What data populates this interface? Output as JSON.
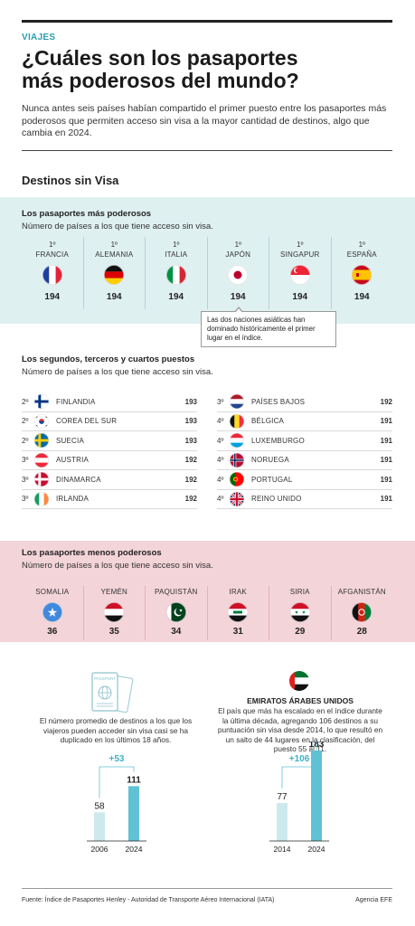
{
  "kicker": "VIAJES",
  "title_line1": "¿Cuáles son los pasaportes",
  "title_line2": "más poderosos del mundo?",
  "lead": "Nunca antes seis países habían compartido el primer puesto entre los pasaportes más poderosos que permiten acceso sin visa a la mayor cantidad de destinos, algo que cambia en 2024.",
  "section_title": "Destinos sin Visa",
  "top": {
    "title": "Los pasaportes más poderosos",
    "subtitle": "Número de países a los que tiene acceso sin visa.",
    "items": [
      {
        "rank": "1º",
        "country": "FRANCIA",
        "score": "194",
        "flag": "france-flag"
      },
      {
        "rank": "1º",
        "country": "ALEMANIA",
        "score": "194",
        "flag": "germany-flag"
      },
      {
        "rank": "1º",
        "country": "ITALIA",
        "score": "194",
        "flag": "italy-flag"
      },
      {
        "rank": "1º",
        "country": "JAPÓN",
        "score": "194",
        "flag": "japan-flag"
      },
      {
        "rank": "1º",
        "country": "SINGAPUR",
        "score": "194",
        "flag": "singapore-flag"
      },
      {
        "rank": "1º",
        "country": "ESPAÑA",
        "score": "194",
        "flag": "spain-flag"
      }
    ],
    "tooltip": "Las dos naciones asiáticas han dominado históricamente el primer lugar en el índice."
  },
  "middle": {
    "title": "Los segundos, terceros y cuartos puestos",
    "subtitle": "Número de países a los que tiene acceso sin visa.",
    "left": [
      {
        "rank": "2º",
        "country": "FINLANDIA",
        "score": "193",
        "flag": "finland-flag"
      },
      {
        "rank": "2º",
        "country": "COREA DEL SUR",
        "score": "193",
        "flag": "south-korea-flag"
      },
      {
        "rank": "2º",
        "country": "SUECIA",
        "score": "193",
        "flag": "sweden-flag"
      },
      {
        "rank": "3º",
        "country": "AUSTRIA",
        "score": "192",
        "flag": "austria-flag"
      },
      {
        "rank": "3º",
        "country": "DINAMARCA",
        "score": "192",
        "flag": "denmark-flag"
      },
      {
        "rank": "3º",
        "country": "IRLANDA",
        "score": "192",
        "flag": "ireland-flag"
      }
    ],
    "right": [
      {
        "rank": "3º",
        "country": "PAÍSES BAJOS",
        "score": "192",
        "flag": "netherlands-flag"
      },
      {
        "rank": "4º",
        "country": "BÉLGICA",
        "score": "191",
        "flag": "belgium-flag"
      },
      {
        "rank": "4º",
        "country": "LUXEMBURGO",
        "score": "191",
        "flag": "luxembourg-flag"
      },
      {
        "rank": "4º",
        "country": "NORUEGA",
        "score": "191",
        "flag": "norway-flag"
      },
      {
        "rank": "4º",
        "country": "PORTUGAL",
        "score": "191",
        "flag": "portugal-flag"
      },
      {
        "rank": "4º",
        "country": "REINO UNIDO",
        "score": "191",
        "flag": "uk-flag"
      }
    ]
  },
  "low": {
    "title": "Los pasaportes menos poderosos",
    "subtitle": "Número de países a los que tiene acceso sin visa.",
    "items": [
      {
        "country": "SOMALIA",
        "score": "36",
        "flag": "somalia-flag"
      },
      {
        "country": "YEMÉN",
        "score": "35",
        "flag": "yemen-flag"
      },
      {
        "country": "PAQUISTÁN",
        "score": "34",
        "flag": "pakistan-flag"
      },
      {
        "country": "IRAK",
        "score": "31",
        "flag": "iraq-flag"
      },
      {
        "country": "SIRIA",
        "score": "29",
        "flag": "syria-flag"
      },
      {
        "country": "AFGANISTÁN",
        "score": "28",
        "flag": "afghanistan-flag"
      }
    ]
  },
  "bottom_left": {
    "icon_label": "PASSPORT",
    "text": "El número promedio de destinos a los que los viajeros pueden acceder sin visa casi se ha duplicado en los últimos 18 años."
  },
  "bottom_right": {
    "title": "EMIRATOS ÁRABES UNIDOS",
    "text": "El país que más ha escalado en el índice durante la última década, agregando 106 destinos a su puntuación sin visa desde 2014, lo que resultó en un salto de 44 lugares en la clasificación, del puesto 55 al 11."
  },
  "chart_data": [
    {
      "type": "bar",
      "categories": [
        "2006",
        "2024"
      ],
      "values": [
        58,
        111
      ],
      "data_labels": [
        "58",
        "111"
      ],
      "annotation": "+53",
      "colors": [
        "#cde9ee",
        "#5fc1d4"
      ]
    },
    {
      "type": "bar",
      "categories": [
        "2014",
        "2024"
      ],
      "values": [
        77,
        183
      ],
      "data_labels": [
        "77",
        "183"
      ],
      "annotation": "+106",
      "colors": [
        "#cde9ee",
        "#5fc1d4"
      ]
    }
  ],
  "footer": {
    "source": "Fuente: Índice de Pasaportes Henley -  Autoridad de Transporte Aéreo Internacional (IATA)",
    "agency": "Agencia EFE"
  },
  "colors": {
    "accent": "#2b9cb0",
    "top_band": "#dff0f1",
    "low_band": "#f3d4d9"
  }
}
